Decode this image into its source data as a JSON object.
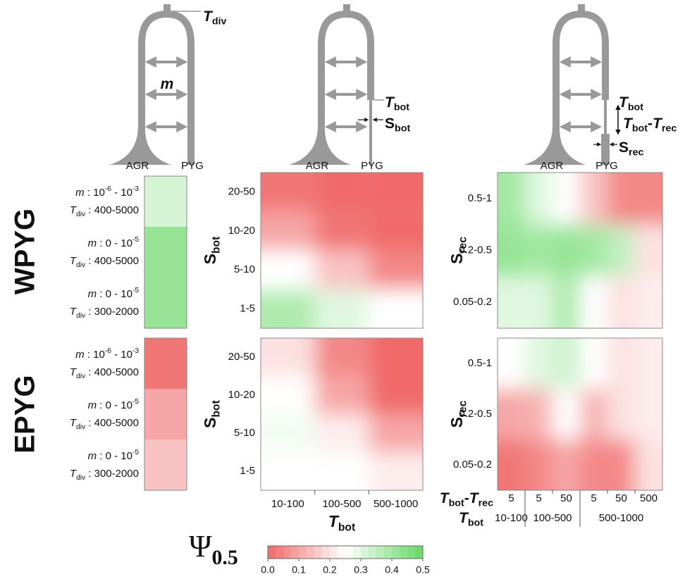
{
  "row_labels": [
    "WPYG",
    "EPYG"
  ],
  "diagrams": [
    {
      "labels": [
        [
          {
            "t": "T",
            "f": "it"
          },
          {
            "t": "div",
            "f": "sub"
          }
        ],
        [
          {
            "t": "m",
            "f": "it"
          }
        ]
      ],
      "left": "AGR",
      "right": "PYG"
    },
    {
      "labels": [
        [
          {
            "t": "T",
            "f": "it"
          },
          {
            "t": "bot",
            "f": "sub"
          }
        ],
        [
          {
            "t": "S"
          },
          {
            "t": "bot",
            "f": "sub"
          }
        ]
      ],
      "left": "AGR",
      "right": "PYG"
    },
    {
      "labels": [
        [
          {
            "t": "T",
            "f": "it"
          },
          {
            "t": "bot",
            "f": "sub"
          }
        ],
        [
          {
            "t": "T",
            "f": "it"
          },
          {
            "t": "bot",
            "f": "sub"
          },
          {
            "t": "-"
          },
          {
            "t": "T",
            "f": "it"
          },
          {
            "t": "rec",
            "f": "sub"
          }
        ],
        [
          {
            "t": "S"
          },
          {
            "t": "rec",
            "f": "sub"
          }
        ]
      ],
      "left": "AGR",
      "right": "PYG"
    }
  ],
  "chart_data": [
    {
      "type": "strip",
      "categories": [
        [
          [
            {
              "t": "m",
              "f": "it"
            },
            {
              "t": " : 10"
            },
            {
              "t": "-6",
              "f": "sup"
            },
            {
              "t": " - 10"
            },
            {
              "t": "-3",
              "f": "sup"
            }
          ],
          [
            {
              "t": "T",
              "f": "it"
            },
            {
              "t": "div",
              "f": "sub"
            },
            {
              "t": " : 400-5000"
            }
          ]
        ],
        [
          [
            {
              "t": "m",
              "f": "it"
            },
            {
              "t": " : 0 - 10"
            },
            {
              "t": "-5",
              "f": "sup"
            }
          ],
          [
            {
              "t": "T",
              "f": "it"
            },
            {
              "t": "div",
              "f": "sub"
            },
            {
              "t": " : 400-5000"
            }
          ]
        ],
        [
          [
            {
              "t": "m",
              "f": "it"
            },
            {
              "t": " : 0 - 10"
            },
            {
              "t": "-5",
              "f": "sup"
            }
          ],
          [
            {
              "t": "T",
              "f": "it"
            },
            {
              "t": "div",
              "f": "sub"
            },
            {
              "t": " : 300-2000"
            }
          ]
        ]
      ],
      "values": [
        0.32,
        0.42,
        0.42
      ]
    },
    {
      "type": "heatmap",
      "ylabel": [
        {
          "t": "S"
        },
        {
          "t": "bot",
          "f": "sub"
        }
      ],
      "y_categories": [
        "20-50",
        "10-20",
        "5-10",
        "1-5"
      ],
      "values": [
        [
          0.02,
          0.0,
          0.0
        ],
        [
          0.1,
          0.02,
          0.0
        ],
        [
          0.25,
          0.15,
          0.05
        ],
        [
          0.38,
          0.3,
          0.25
        ]
      ]
    },
    {
      "type": "heatmap",
      "ylabel": [
        {
          "t": "S"
        },
        {
          "t": "rec",
          "f": "sub"
        }
      ],
      "y_categories": [
        "0.5-1",
        "0.2-0.5",
        "0.05-0.2"
      ],
      "values": [
        [
          0.4,
          0.3,
          0.25,
          0.15,
          0.05,
          0.05
        ],
        [
          0.42,
          0.4,
          0.42,
          0.4,
          0.35,
          0.2
        ],
        [
          0.3,
          0.3,
          0.38,
          0.25,
          0.2,
          0.22
        ]
      ]
    },
    {
      "type": "strip",
      "categories": [
        [
          [
            {
              "t": "m",
              "f": "it"
            },
            {
              "t": " : 10"
            },
            {
              "t": "-6",
              "f": "sup"
            },
            {
              "t": " - 10"
            },
            {
              "t": "-3",
              "f": "sup"
            }
          ],
          [
            {
              "t": "T",
              "f": "it"
            },
            {
              "t": "div",
              "f": "sub"
            },
            {
              "t": " : 400-5000"
            }
          ]
        ],
        [
          [
            {
              "t": "m",
              "f": "it"
            },
            {
              "t": " : 0 - 10"
            },
            {
              "t": "-5",
              "f": "sup"
            }
          ],
          [
            {
              "t": "T",
              "f": "it"
            },
            {
              "t": "div",
              "f": "sub"
            },
            {
              "t": " : 400-5000"
            }
          ]
        ],
        [
          [
            {
              "t": "m",
              "f": "it"
            },
            {
              "t": " : 0 - 10"
            },
            {
              "t": "-5",
              "f": "sup"
            }
          ],
          [
            {
              "t": "T",
              "f": "it"
            },
            {
              "t": "div",
              "f": "sub"
            },
            {
              "t": " : 300-2000"
            }
          ]
        ]
      ],
      "values": [
        0.02,
        0.1,
        0.15
      ]
    },
    {
      "type": "heatmap",
      "ylabel": [
        {
          "t": "S"
        },
        {
          "t": "bot",
          "f": "sub"
        }
      ],
      "y_categories": [
        "20-50",
        "10-20",
        "5-10",
        "1-5"
      ],
      "x_categories": [
        "10-100",
        "100-500",
        "500-1000"
      ],
      "xlabel": [
        {
          "t": "T",
          "f": "it"
        },
        {
          "t": "bot",
          "f": "sub"
        }
      ],
      "values": [
        [
          0.2,
          0.05,
          0.0
        ],
        [
          0.25,
          0.1,
          0.0
        ],
        [
          0.27,
          0.22,
          0.1
        ],
        [
          0.25,
          0.25,
          0.22
        ]
      ]
    },
    {
      "type": "heatmap",
      "ylabel": [
        {
          "t": "S"
        },
        {
          "t": "rec",
          "f": "sub"
        }
      ],
      "y_categories": [
        "0.5-1",
        "0.2-0.5",
        "0.05-0.2"
      ],
      "x_sub_title": [
        {
          "t": "T",
          "f": "it"
        },
        {
          "t": "bot",
          "f": "sub"
        },
        {
          "t": "-"
        },
        {
          "t": "T",
          "f": "it"
        },
        {
          "t": "rec",
          "f": "sub"
        }
      ],
      "x_group_title": [
        {
          "t": "T",
          "f": "it"
        },
        {
          "t": "bot",
          "f": "sub"
        }
      ],
      "x_groups": [
        {
          "label": "10-100",
          "sub": [
            "5"
          ]
        },
        {
          "label": "100-500",
          "sub": [
            "5",
            "50"
          ]
        },
        {
          "label": "500-1000",
          "sub": [
            "5",
            "50",
            "500"
          ]
        }
      ],
      "values": [
        [
          0.25,
          0.3,
          0.33,
          0.25,
          0.2,
          0.22
        ],
        [
          0.1,
          0.12,
          0.25,
          0.12,
          0.2,
          0.22
        ],
        [
          0.02,
          0.05,
          0.1,
          0.05,
          0.05,
          0.2
        ]
      ]
    },
    {
      "type": "colorbar",
      "title": [
        {
          "t": "Ψ"
        },
        {
          "t": "0.5",
          "f": "sub"
        }
      ],
      "clim": [
        0,
        0.5
      ],
      "ticks": [
        {
          "value": 0,
          "label": "0.0"
        },
        0.1,
        0.2,
        0.3,
        0.4,
        0.5
      ],
      "colors": [
        "#f06a6a",
        "#ffffff",
        "#66d866"
      ]
    }
  ]
}
